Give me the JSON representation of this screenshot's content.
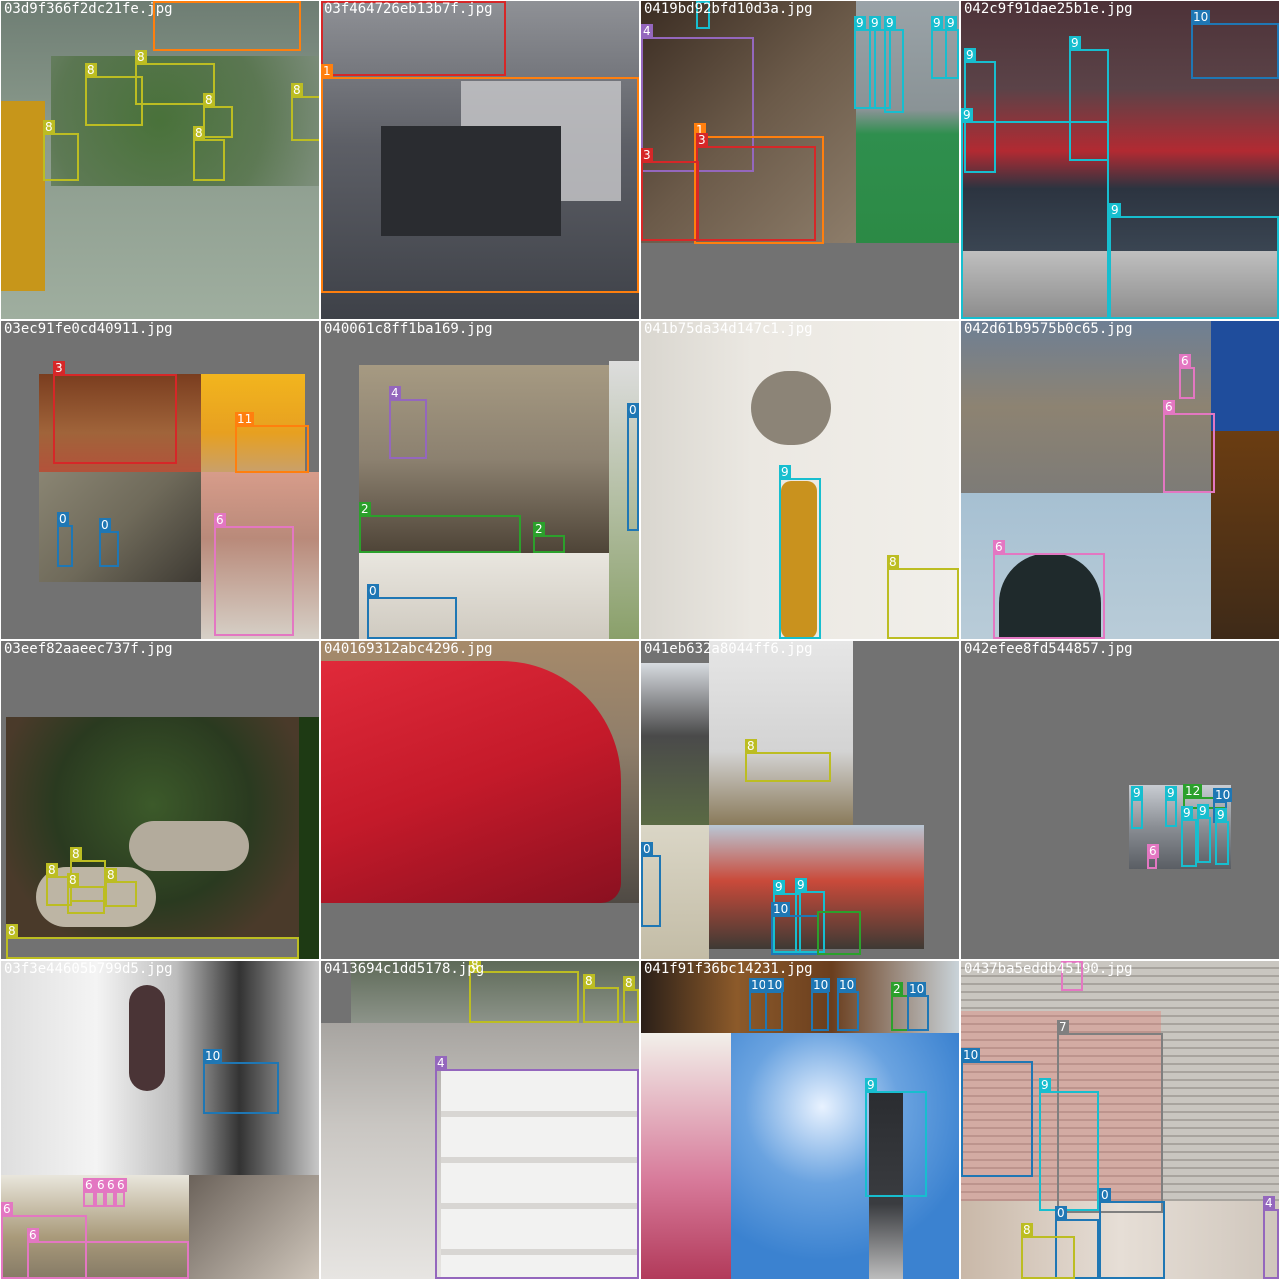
{
  "colors": {
    "0": "#1f77b4",
    "1": "#ff7f0e",
    "2": "#2ca02c",
    "3": "#d62728",
    "4": "#9467bd",
    "6": "#e377c2",
    "7": "#7f7f7f",
    "8": "#bcbd22",
    "9": "#17becf",
    "10": "#1f77b4",
    "11": "#ff7f0e",
    "12": "#2ca02c",
    "background": "#727272"
  },
  "tiles": [
    {
      "filename": "03d9f366f2dc21fe.jpg",
      "labels": [
        "8",
        "8",
        "8",
        "8",
        "8",
        "8",
        "8"
      ]
    },
    {
      "filename": "03f464726eb13b7f.jpg",
      "labels": [
        "1"
      ]
    },
    {
      "filename": "0419bd92bfd10d3a.jpg",
      "labels": [
        "4",
        "1",
        "3",
        "3",
        "9",
        "9",
        "9",
        "9",
        "9"
      ]
    },
    {
      "filename": "042c9f91dae25b1e.jpg",
      "labels": [
        "10",
        "9",
        "9",
        "9",
        "9"
      ]
    },
    {
      "filename": "03ec91fe0cd40911.jpg",
      "labels": [
        "3",
        "11",
        "0",
        "0",
        "6"
      ]
    },
    {
      "filename": "040061c8ff1ba169.jpg",
      "labels": [
        "4",
        "2",
        "2",
        "0",
        "0"
      ]
    },
    {
      "filename": "041b75da34d147c1.jpg",
      "labels": [
        "9",
        "8"
      ]
    },
    {
      "filename": "042d61b9575b0c65.jpg",
      "labels": [
        "6",
        "6",
        "6"
      ]
    },
    {
      "filename": "03eef82aaeec737f.jpg",
      "labels": [
        "8",
        "8",
        "8",
        "8",
        "8"
      ]
    },
    {
      "filename": "040169312abc4296.jpg",
      "labels": []
    },
    {
      "filename": "041eb632a8044ff6.jpg",
      "labels": [
        "8",
        "0",
        "9",
        "9",
        "10"
      ]
    },
    {
      "filename": "042efee8fd544857.jpg",
      "labels": [
        "9",
        "9",
        "12",
        "10",
        "9",
        "9",
        "9",
        "6"
      ]
    },
    {
      "filename": "03f3e44605b799d5.jpg",
      "labels": [
        "10",
        "6",
        "6",
        "6",
        "6",
        "6",
        "6"
      ]
    },
    {
      "filename": "0413694c1dd5178.jpg",
      "labels": [
        "8",
        "8",
        "8",
        "4"
      ]
    },
    {
      "filename": "041f91f36bc14231.jpg",
      "labels": [
        "10",
        "10",
        "10",
        "10",
        "2",
        "10",
        "9"
      ]
    },
    {
      "filename": "0437ba5eddb45190.jpg",
      "labels": [
        "6",
        "7",
        "10",
        "9",
        "0",
        "0",
        "8",
        "4"
      ]
    }
  ]
}
